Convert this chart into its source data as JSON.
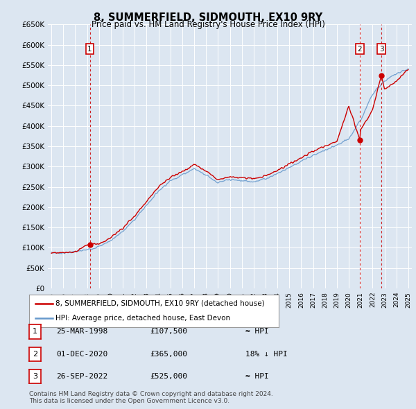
{
  "title": "8, SUMMERFIELD, SIDMOUTH, EX10 9RY",
  "subtitle": "Price paid vs. HM Land Registry's House Price Index (HPI)",
  "background_color": "#dce6f1",
  "ylim": [
    0,
    650000
  ],
  "yticks": [
    0,
    50000,
    100000,
    150000,
    200000,
    250000,
    300000,
    350000,
    400000,
    450000,
    500000,
    550000,
    600000,
    650000
  ],
  "xlim_start": 1994.7,
  "xlim_end": 2025.3,
  "sale_points": [
    {
      "year": 1998.23,
      "price": 107500,
      "label": "1"
    },
    {
      "year": 2020.92,
      "price": 365000,
      "label": "2"
    },
    {
      "year": 2022.74,
      "price": 525000,
      "label": "3"
    }
  ],
  "red_color": "#cc0000",
  "blue_color": "#6699cc",
  "legend_label1": "8, SUMMERFIELD, SIDMOUTH, EX10 9RY (detached house)",
  "legend_label2": "HPI: Average price, detached house, East Devon",
  "table_rows": [
    {
      "num": "1",
      "date": "25-MAR-1998",
      "price": "£107,500",
      "vs_hpi": "≈ HPI"
    },
    {
      "num": "2",
      "date": "01-DEC-2020",
      "price": "£365,000",
      "vs_hpi": "18% ↓ HPI"
    },
    {
      "num": "3",
      "date": "26-SEP-2022",
      "price": "£525,000",
      "vs_hpi": "≈ HPI"
    }
  ],
  "footer": "Contains HM Land Registry data © Crown copyright and database right 2024.\nThis data is licensed under the Open Government Licence v3.0.",
  "hpi_key_years": [
    1995,
    1996,
    1997,
    1998,
    1999,
    2000,
    2001,
    2002,
    2003,
    2004,
    2005,
    2006,
    2007,
    2008,
    2009,
    2010,
    2011,
    2012,
    2013,
    2014,
    2015,
    2016,
    2017,
    2018,
    2019,
    2020,
    2021,
    2022,
    2023,
    2024,
    2025
  ],
  "hpi_key_vals": [
    88000,
    87000,
    90000,
    95000,
    103000,
    118000,
    140000,
    170000,
    205000,
    240000,
    265000,
    280000,
    295000,
    280000,
    260000,
    268000,
    265000,
    263000,
    270000,
    283000,
    298000,
    313000,
    328000,
    340000,
    352000,
    368000,
    415000,
    480000,
    510000,
    530000,
    540000
  ],
  "prop_key_years": [
    1995,
    1996,
    1997,
    1998,
    1999,
    2000,
    2001,
    2002,
    2003,
    2004,
    2005,
    2006,
    2007,
    2008,
    2009,
    2010,
    2011,
    2012,
    2013,
    2014,
    2015,
    2016,
    2017,
    2018,
    2019,
    2020,
    2020.92,
    2021,
    2022,
    2022.74,
    2023,
    2024,
    2025
  ],
  "prop_key_vals": [
    88000,
    87000,
    90000,
    107500,
    110000,
    125000,
    148000,
    178000,
    215000,
    250000,
    273000,
    288000,
    305000,
    290000,
    268000,
    275000,
    273000,
    270000,
    278000,
    290000,
    307000,
    322000,
    338000,
    350000,
    362000,
    450000,
    365000,
    390000,
    440000,
    525000,
    490000,
    510000,
    540000
  ]
}
